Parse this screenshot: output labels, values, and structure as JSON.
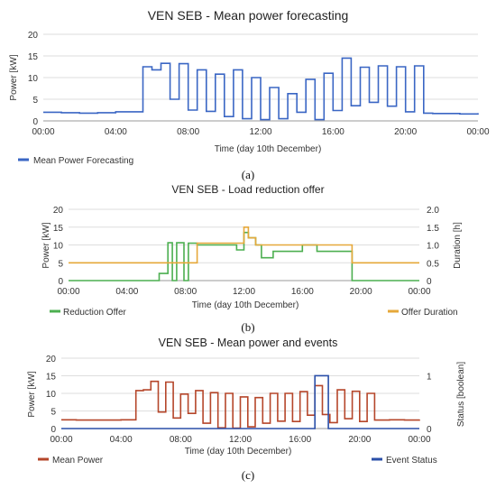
{
  "figure": {
    "captions": [
      "(a)",
      "(b)",
      "(c)"
    ]
  },
  "chart_data": [
    {
      "type": "line",
      "step": true,
      "title": "VEN SEB - Mean power forecasting",
      "xlabel": "Time (day 10th December)",
      "ylabel": "Power [kW]",
      "xlim": [
        0,
        24
      ],
      "ylim": [
        0,
        20
      ],
      "xticks": [
        "00:00",
        "04:00",
        "08:00",
        "12:00",
        "16:00",
        "20:00",
        "00:00"
      ],
      "yticks": [
        "0",
        "5",
        "10",
        "15",
        "20"
      ],
      "grid": true,
      "legend_position": "bottom-left",
      "series": [
        {
          "name": "Mean Power Forecasting",
          "color": "#3a66c4",
          "axis": "left",
          "x": [
            0,
            1,
            2,
            3,
            4,
            5.5,
            6.0,
            6.5,
            7.0,
            7.5,
            8.0,
            8.5,
            9.0,
            9.5,
            10.0,
            10.5,
            11.0,
            11.5,
            12.0,
            12.5,
            13.0,
            13.5,
            14.0,
            14.5,
            15.0,
            15.5,
            16.0,
            16.5,
            17.0,
            17.5,
            18.0,
            18.5,
            19.0,
            19.5,
            20.0,
            20.5,
            21.0,
            21.5,
            22.0,
            23.0,
            24.0
          ],
          "y": [
            2.0,
            1.9,
            1.8,
            1.9,
            2.1,
            12.5,
            11.8,
            13.3,
            5.0,
            13.2,
            2.5,
            11.8,
            2.2,
            10.8,
            1.0,
            11.8,
            0.5,
            10.0,
            0.3,
            7.7,
            0.5,
            6.3,
            2.0,
            9.6,
            0.3,
            11.0,
            2.4,
            14.5,
            3.5,
            12.4,
            4.3,
            12.7,
            3.4,
            12.5,
            2.1,
            12.7,
            1.8,
            1.7,
            1.7,
            1.6,
            1.8
          ]
        }
      ]
    },
    {
      "type": "line",
      "step": true,
      "title": "VEN SEB - Load reduction offer",
      "xlabel": "Time (day 10th December)",
      "ylabel": "Power [kW]",
      "y2label": "Duration [h]",
      "xlim": [
        0,
        24
      ],
      "ylim": [
        0,
        20
      ],
      "y2lim": [
        0,
        2
      ],
      "xticks": [
        "00:00",
        "04:00",
        "08:00",
        "12:00",
        "16:00",
        "20:00",
        "00:00"
      ],
      "yticks": [
        "0",
        "5",
        "10",
        "15",
        "20"
      ],
      "y2ticks": [
        "0",
        "0.5",
        "1.0",
        "1.5",
        "2.0"
      ],
      "grid": true,
      "legend_position": "bottom",
      "series": [
        {
          "name": "Reduction Offer",
          "color": "#4caf50",
          "axis": "left",
          "x": [
            0,
            6.2,
            6.8,
            7.1,
            7.4,
            7.9,
            8.2,
            8.8,
            10.0,
            11.5,
            12.0,
            12.3,
            12.8,
            13.2,
            14.0,
            16.0,
            17.0,
            19.4,
            24.0
          ],
          "y": [
            0,
            2.0,
            10.6,
            0,
            10.6,
            0,
            10.5,
            10.0,
            10.0,
            8.6,
            13.5,
            12.0,
            10.0,
            6.4,
            8.2,
            10.0,
            8.2,
            0,
            0
          ]
        },
        {
          "name": "Offer Duration",
          "color": "#e6a83a",
          "axis": "right",
          "x": [
            0,
            8.8,
            12.0,
            12.3,
            12.8,
            16.0,
            19.4,
            24.0
          ],
          "y": [
            0.5,
            1.05,
            1.5,
            1.2,
            1.0,
            1.0,
            0.5,
            0.5
          ]
        }
      ]
    },
    {
      "type": "line",
      "step": true,
      "title": "VEN SEB - Mean power and events",
      "xlabel": "Time (day 10th December)",
      "ylabel": "Power [kW]",
      "y2label": "Status [boolean]",
      "xlim": [
        0,
        24
      ],
      "ylim": [
        0,
        20
      ],
      "y2lim": [
        0,
        1.33
      ],
      "xticks": [
        "00:00",
        "04:00",
        "08:00",
        "12:00",
        "16:00",
        "20:00",
        "00:00"
      ],
      "yticks": [
        "0",
        "5",
        "10",
        "15",
        "20"
      ],
      "y2ticks": [
        "0",
        "1"
      ],
      "grid": true,
      "legend_position": "bottom",
      "series": [
        {
          "name": "Mean Power",
          "color": "#b5462a",
          "axis": "left",
          "x": [
            0,
            1,
            2,
            3,
            4,
            5.0,
            5.5,
            6.0,
            6.5,
            7.0,
            7.5,
            8.0,
            8.5,
            9.0,
            9.5,
            10.0,
            10.5,
            11.0,
            11.5,
            12.0,
            12.5,
            13.0,
            13.5,
            14.0,
            14.5,
            15.0,
            15.5,
            16.0,
            16.5,
            17.0,
            17.5,
            18.0,
            18.5,
            19.0,
            19.5,
            20.0,
            20.5,
            21.0,
            22.0,
            23.0,
            24.0
          ],
          "y": [
            2.5,
            2.4,
            2.4,
            2.4,
            2.5,
            10.8,
            11.0,
            13.4,
            4.7,
            13.2,
            3.0,
            9.8,
            4.3,
            10.8,
            1.5,
            10.2,
            0.2,
            10.0,
            0.1,
            9.0,
            0.5,
            8.8,
            1.5,
            10.0,
            2.1,
            10.0,
            2.0,
            10.5,
            3.8,
            12.2,
            4.0,
            1.7,
            11.0,
            2.8,
            10.6,
            2.0,
            10.0,
            2.4,
            2.5,
            2.4,
            2.6
          ]
        },
        {
          "name": "Event Status",
          "color": "#2a4fa8",
          "axis": "right",
          "x": [
            0,
            17.0,
            17.9,
            24.0
          ],
          "y": [
            0,
            1,
            0,
            0
          ]
        }
      ]
    }
  ]
}
